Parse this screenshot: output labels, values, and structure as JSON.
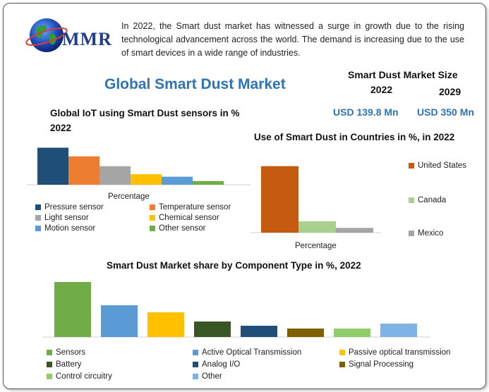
{
  "brand": {
    "logo_text": "MMR"
  },
  "intro": "In 2022, the Smart dust market has witnessed a surge in growth due to the rising technological advancement across the world. The demand is increasing due to the use of smart devices in a wide range of industries.",
  "title": "Global Smart Dust Market",
  "market_size": {
    "title": "Smart Dust Market Size",
    "years": [
      "2022",
      "2029"
    ],
    "values": [
      "USD 139.8 Mn",
      "USD 350 Mn"
    ]
  },
  "chart_data": [
    {
      "type": "bar",
      "title": "Global IoT using Smart Dust sensors in % 2022",
      "xlabel": "Percentage",
      "ylabel": "",
      "categories": [
        "Percentage"
      ],
      "series": [
        {
          "name": "Pressure sensor",
          "values": [
            30
          ],
          "color": "#1f4e79"
        },
        {
          "name": "Temperature sensor",
          "values": [
            23
          ],
          "color": "#ed7d31"
        },
        {
          "name": "Light sensor",
          "values": [
            15
          ],
          "color": "#a5a5a5"
        },
        {
          "name": "Chemical sensor",
          "values": [
            8.5
          ],
          "color": "#ffc000"
        },
        {
          "name": "Motion sensor",
          "values": [
            6.5
          ],
          "color": "#5b9bd5"
        },
        {
          "name": "Other sensor",
          "values": [
            3
          ],
          "color": "#70ad47"
        }
      ],
      "ylim": [
        0,
        32
      ],
      "grid": false,
      "legend": "bottom"
    },
    {
      "type": "bar",
      "title": "Use of Smart Dust in Countries in %, in 2022",
      "xlabel": "Percentage",
      "ylabel": "",
      "categories": [
        "Percentage"
      ],
      "series": [
        {
          "name": "United States",
          "values": [
            70
          ],
          "color": "#c55a11"
        },
        {
          "name": "Canada",
          "values": [
            12
          ],
          "color": "#a9d18e"
        },
        {
          "name": "Mexico",
          "values": [
            5
          ],
          "color": "#a5a5a5"
        }
      ],
      "ylim": [
        0,
        72
      ],
      "grid": false,
      "legend": "right"
    },
    {
      "type": "bar",
      "title": "Smart Dust Market share by Component Type in %, 2022",
      "xlabel": "",
      "ylabel": "",
      "categories": [
        "Sensors",
        "Active Optical Transmission",
        "Passive optical transmission",
        "Battery",
        "Analog I/O",
        "Signal Processing",
        "Control circuitry",
        "Other"
      ],
      "values": [
        39,
        22.5,
        17.5,
        11,
        8,
        6,
        6,
        9.5
      ],
      "colors": [
        "#70ad47",
        "#5b9bd5",
        "#ffc000",
        "#375623",
        "#1f4e79",
        "#7f6000",
        "#8fce6a",
        "#7fb2e5"
      ],
      "ylim": [
        0,
        40
      ],
      "grid": false,
      "legend": "bottom"
    }
  ]
}
